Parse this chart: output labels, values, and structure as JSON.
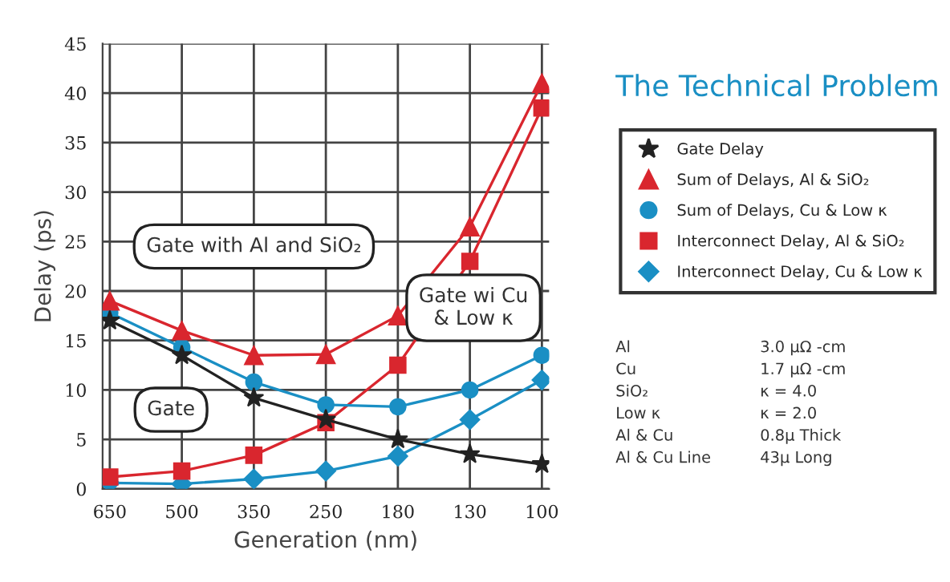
{
  "chart_data": {
    "type": "line",
    "title": "The Technical Problem",
    "xlabel": "Generation (nm)",
    "ylabel": "Delay (ps)",
    "categories": [
      "650",
      "500",
      "350",
      "250",
      "180",
      "130",
      "100"
    ],
    "series": [
      {
        "name": "Gate Delay",
        "color": "#222222",
        "marker": "star",
        "values": [
          17,
          13.5,
          9.2,
          7,
          5,
          3.5,
          2.5
        ]
      },
      {
        "name": "Sum of Delays, Al & SiO₂",
        "color": "#d9262e",
        "marker": "triangle",
        "values": [
          19,
          16,
          13.5,
          13.6,
          17.5,
          26.5,
          41
        ]
      },
      {
        "name": "Sum of Delays, Cu & Low κ",
        "color": "#1a8fc4",
        "marker": "circle",
        "values": [
          17.8,
          14.3,
          10.8,
          8.5,
          8.3,
          10,
          13.5
        ]
      },
      {
        "name": "Interconnect Delay, Al & SiO₂",
        "color": "#d9262e",
        "marker": "square",
        "values": [
          1.2,
          1.8,
          3.4,
          6.7,
          12.5,
          23,
          38.5
        ]
      },
      {
        "name": "Interconnect Delay, Cu & Low κ",
        "color": "#1a8fc4",
        "marker": "diamond",
        "values": [
          0.6,
          0.5,
          1,
          1.8,
          3.3,
          7,
          11
        ]
      }
    ],
    "ylim": [
      0,
      45
    ],
    "yticks": [
      0,
      5,
      10,
      15,
      20,
      25,
      30,
      35,
      40,
      45
    ],
    "grid": true,
    "legend": "right",
    "annotations": [
      "Gate with Al and SiO₂",
      "Gate wi Cu\n& Low κ",
      "Gate",
      "Al",
      "3.0 μΩ -cm",
      "Cu",
      "1.7 μΩ -cm",
      "SiO₂",
      "κ = 4.0",
      "Low κ",
      "κ = 2.0",
      "Al & Cu",
      "0.8μ Thick",
      "Al & Cu Line",
      "43μ Long"
    ]
  }
}
